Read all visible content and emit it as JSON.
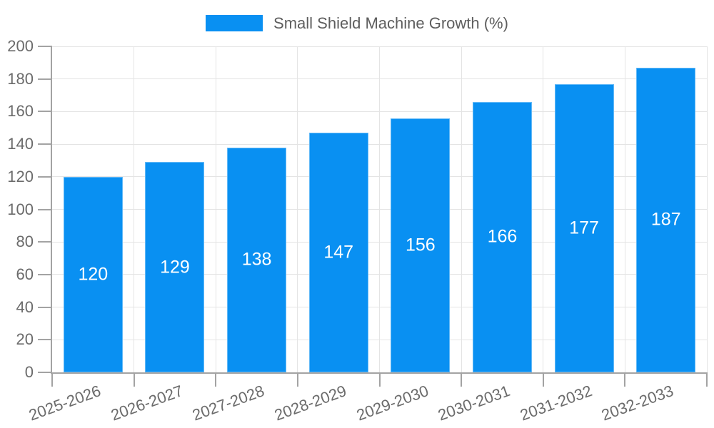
{
  "chart_data": {
    "type": "bar",
    "title": "Small Shield Machine Growth (%)",
    "legend": {
      "label": "Small Shield Machine Growth (%)",
      "position": "top-center",
      "swatch_color": "#0990f2"
    },
    "categories": [
      "2025-2026",
      "2026-2027",
      "2027-2028",
      "2028-2029",
      "2029-2030",
      "2030-2031",
      "2031-2032",
      "2032-2033"
    ],
    "values": [
      120,
      129,
      138,
      147,
      156,
      166,
      177,
      187
    ],
    "value_labels_shown_inside_bars": true,
    "xlabel": "",
    "ylabel": "",
    "ylim": [
      0,
      200
    ],
    "ytick_step": 20,
    "yticks": [
      0,
      20,
      40,
      60,
      80,
      100,
      120,
      140,
      160,
      180,
      200
    ],
    "grid": true,
    "x_label_rotation_deg": -20,
    "colors": {
      "bar": "#0990f2",
      "bar_edge": "#63b9f7",
      "bar_value_text": "#ffffff",
      "axis_text": "#6b6b6b",
      "legend_text": "#5e5e5e",
      "gridline": "#e4e4e4",
      "axis_line": "#a3a3a3",
      "background": "#ffffff"
    }
  }
}
